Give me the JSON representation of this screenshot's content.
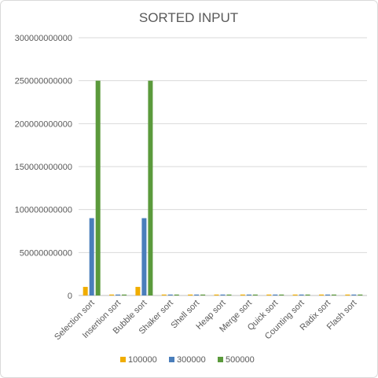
{
  "chart_data": {
    "type": "bar",
    "title": "SORTED INPUT",
    "xlabel": "",
    "ylabel": "",
    "ylim": [
      0,
      300000000000
    ],
    "y_ticks": [
      "0",
      "50000000000",
      "100000000000",
      "150000000000",
      "200000000000",
      "250000000000",
      "300000000000"
    ],
    "grid": true,
    "legend_position": "bottom",
    "categories": [
      "Selection sort",
      "Insertion sort",
      "Bubble sort",
      "Shaker sort",
      "Shell sort",
      "Heap sort",
      "Merge sort",
      "Quick sort",
      "Counting sort",
      "Radix sort",
      "Flash sort"
    ],
    "series": [
      {
        "name": "100000",
        "color": "#f0ad00",
        "values": [
          10000000000,
          200000,
          10000000000,
          200000,
          3500000,
          4000000,
          4000000,
          3500000,
          400000,
          2500000,
          1500000
        ]
      },
      {
        "name": "300000",
        "color": "#4a7ebb",
        "values": [
          90000000000,
          600000,
          90000000000,
          600000,
          12000000,
          13000000,
          12000000,
          11000000,
          1200000,
          7000000,
          4500000
        ]
      },
      {
        "name": "500000",
        "color": "#5b9a3c",
        "values": [
          250000000000,
          1000000,
          250000000000,
          1000000,
          21000000,
          22000000,
          21000000,
          19000000,
          2000000,
          12000000,
          7500000
        ]
      }
    ]
  }
}
